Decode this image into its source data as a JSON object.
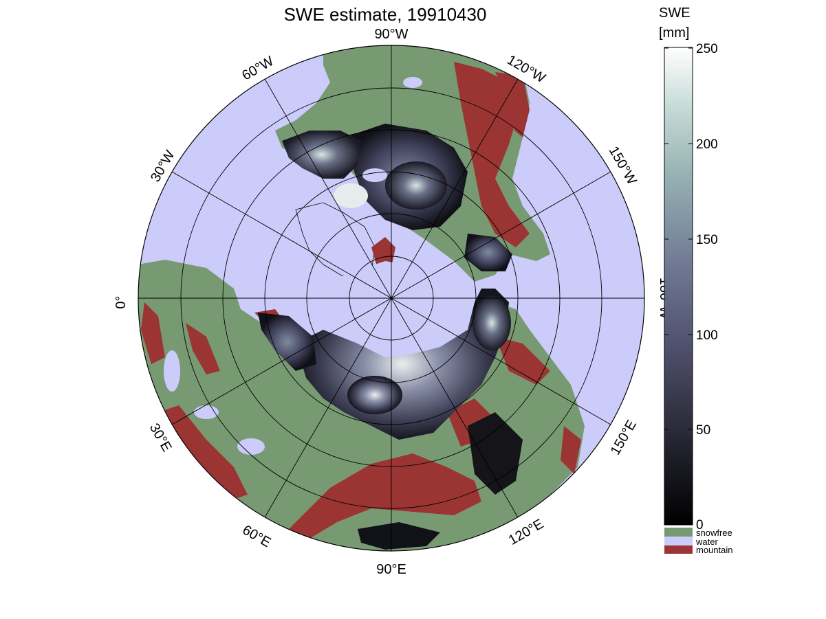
{
  "title": "SWE estimate, 19910430",
  "colorbar": {
    "title_line1": "SWE",
    "title_line2": "[mm]",
    "ticks": [
      "250",
      "200",
      "150",
      "100",
      "50",
      "0"
    ],
    "range": [
      0,
      250
    ]
  },
  "longitude_labels": {
    "lon_0": "0°",
    "lon_30e": "30°E",
    "lon_60e": "60°E",
    "lon_90e": "90°E",
    "lon_120e": "120°E",
    "lon_150e": "150°E",
    "lon_180w": "180°W",
    "lon_150w": "150°W",
    "lon_120w": "120°W",
    "lon_90w": "90°W",
    "lon_60w": "60°W",
    "lon_30w": "30°W"
  },
  "legend": {
    "snowfree": {
      "label": "snowfree",
      "color": "#789a73"
    },
    "water": {
      "label": "water",
      "color": "#ccccfa"
    },
    "mountain": {
      "label": "mountain",
      "color": "#9a3534"
    }
  },
  "colors": {
    "ocean": "#ccccfa",
    "land_snowfree": "#789a73",
    "mountain": "#9a3534",
    "snow_low": "#000000",
    "snow_mid": "#5a5a78",
    "snow_high": "#ffffff"
  }
}
